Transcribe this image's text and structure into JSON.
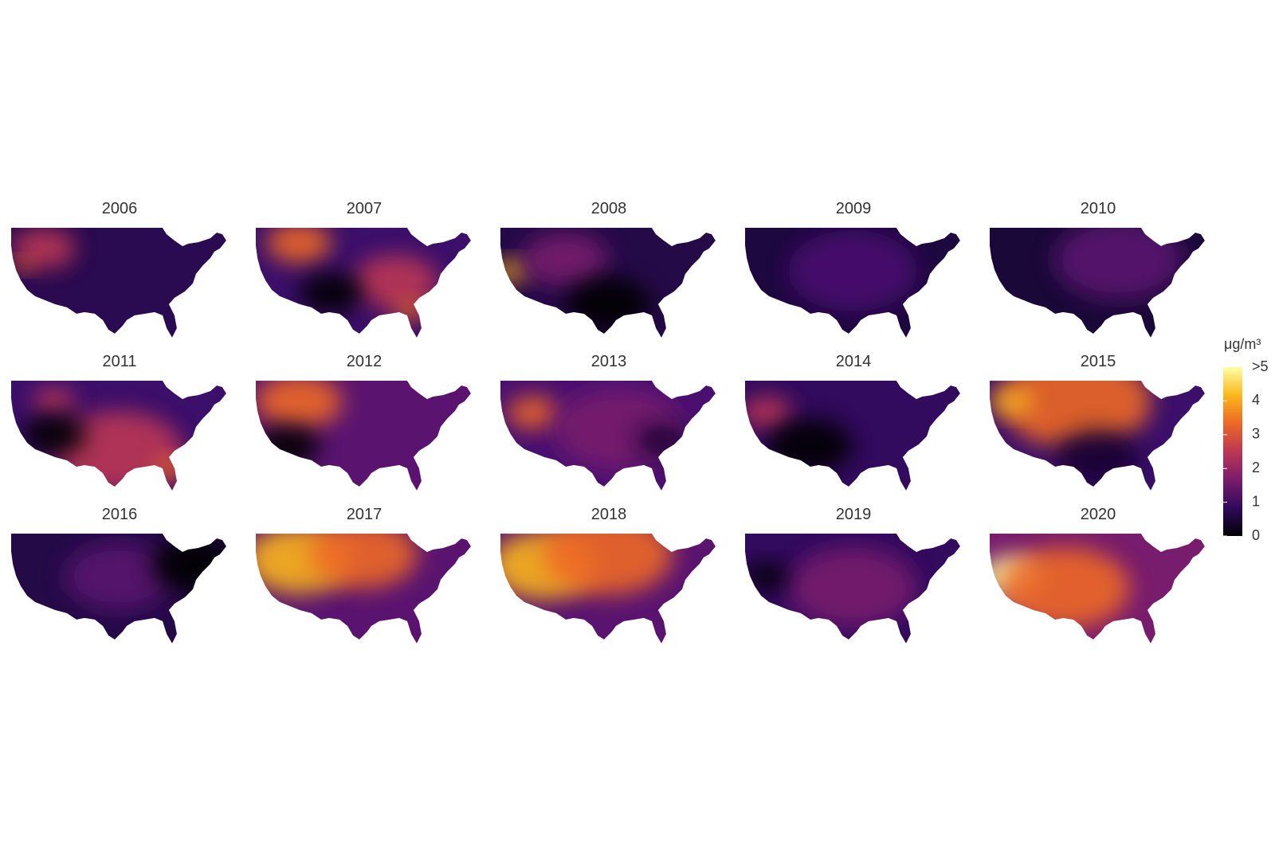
{
  "panels": [
    {
      "title": "2006"
    },
    {
      "title": "2007"
    },
    {
      "title": "2008"
    },
    {
      "title": "2009"
    },
    {
      "title": "2010"
    },
    {
      "title": "2011"
    },
    {
      "title": "2012"
    },
    {
      "title": "2013"
    },
    {
      "title": "2014"
    },
    {
      "title": "2015"
    },
    {
      "title": "2016"
    },
    {
      "title": "2017"
    },
    {
      "title": "2018"
    },
    {
      "title": "2019"
    },
    {
      "title": "2020"
    }
  ],
  "legend": {
    "title": "μg/m³",
    "ticks": [
      0,
      1,
      2,
      3,
      4,
      {
        "value": 5,
        "label": ">5"
      }
    ]
  }
}
